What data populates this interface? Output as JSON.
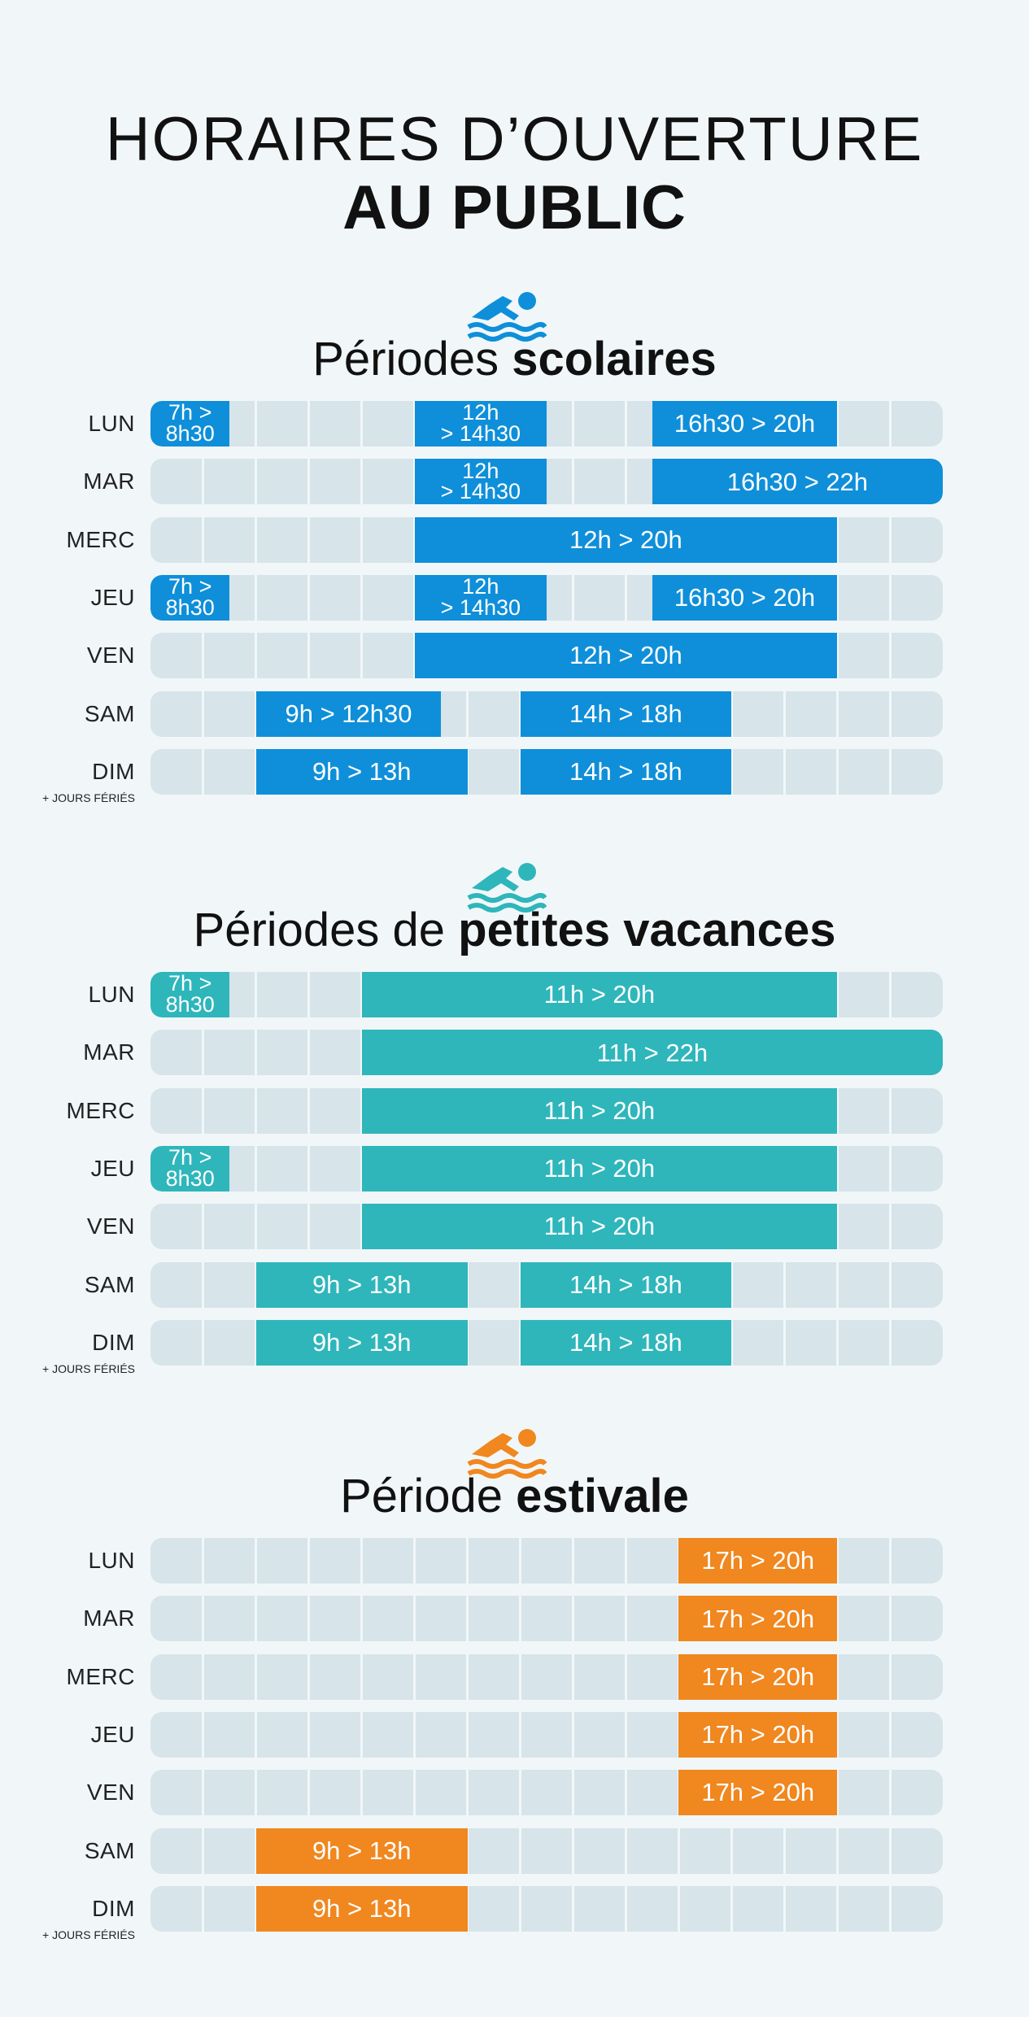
{
  "header": {
    "line1": "HORAIRES D’OUVERTURE",
    "line2": "AU PUBLIC"
  },
  "colors": {
    "scolaires": "#0f8fd9",
    "petites": "#2eb6bb",
    "estivale": "#f0871f"
  },
  "icons": {
    "section": "swimmer-icon"
  },
  "holiday_note": "+ JOURS FÉRIÉS",
  "timeline": {
    "start_hour": 7,
    "end_hour": 22
  },
  "sections": [
    {
      "id": "scolaires",
      "title_prefix": "Périodes ",
      "title_bold": "scolaires",
      "days": [
        {
          "day": "LUN",
          "blocks": [
            {
              "label": "7h > 8h30",
              "start": 7,
              "end": 8.5
            },
            {
              "label": "12h > 14h30",
              "start": 12,
              "end": 14.5
            },
            {
              "label": "16h30 > 20h",
              "start": 16.5,
              "end": 20
            }
          ]
        },
        {
          "day": "MAR",
          "blocks": [
            {
              "label": "12h > 14h30",
              "start": 12,
              "end": 14.5
            },
            {
              "label": "16h30 > 22h",
              "start": 16.5,
              "end": 22
            }
          ]
        },
        {
          "day": "MERC",
          "blocks": [
            {
              "label": "12h > 20h",
              "start": 12,
              "end": 20
            }
          ]
        },
        {
          "day": "JEU",
          "blocks": [
            {
              "label": "7h > 8h30",
              "start": 7,
              "end": 8.5
            },
            {
              "label": "12h > 14h30",
              "start": 12,
              "end": 14.5
            },
            {
              "label": "16h30 > 20h",
              "start": 16.5,
              "end": 20
            }
          ]
        },
        {
          "day": "VEN",
          "blocks": [
            {
              "label": "12h > 20h",
              "start": 12,
              "end": 20
            }
          ]
        },
        {
          "day": "SAM",
          "blocks": [
            {
              "label": "9h > 12h30",
              "start": 9,
              "end": 12.5
            },
            {
              "label": "14h > 18h",
              "start": 14,
              "end": 18
            }
          ]
        },
        {
          "day": "DIM",
          "holiday": true,
          "blocks": [
            {
              "label": "9h > 13h",
              "start": 9,
              "end": 13
            },
            {
              "label": "14h > 18h",
              "start": 14,
              "end": 18
            }
          ]
        }
      ]
    },
    {
      "id": "petites",
      "title_prefix": "Périodes de ",
      "title_bold": "petites vacances",
      "days": [
        {
          "day": "LUN",
          "blocks": [
            {
              "label": "7h > 8h30",
              "start": 7,
              "end": 8.5
            },
            {
              "label": "11h > 20h",
              "start": 11,
              "end": 20
            }
          ]
        },
        {
          "day": "MAR",
          "blocks": [
            {
              "label": "11h > 22h",
              "start": 11,
              "end": 22
            }
          ]
        },
        {
          "day": "MERC",
          "blocks": [
            {
              "label": "11h > 20h",
              "start": 11,
              "end": 20
            }
          ]
        },
        {
          "day": "JEU",
          "blocks": [
            {
              "label": "7h > 8h30",
              "start": 7,
              "end": 8.5
            },
            {
              "label": "11h > 20h",
              "start": 11,
              "end": 20
            }
          ]
        },
        {
          "day": "VEN",
          "blocks": [
            {
              "label": "11h > 20h",
              "start": 11,
              "end": 20
            }
          ]
        },
        {
          "day": "SAM",
          "blocks": [
            {
              "label": "9h > 13h",
              "start": 9,
              "end": 13
            },
            {
              "label": "14h > 18h",
              "start": 14,
              "end": 18
            }
          ]
        },
        {
          "day": "DIM",
          "holiday": true,
          "blocks": [
            {
              "label": "9h > 13h",
              "start": 9,
              "end": 13
            },
            {
              "label": "14h > 18h",
              "start": 14,
              "end": 18
            }
          ]
        }
      ]
    },
    {
      "id": "estivale",
      "title_prefix": "Période ",
      "title_bold": "estivale",
      "days": [
        {
          "day": "LUN",
          "blocks": [
            {
              "label": "17h > 20h",
              "start": 17,
              "end": 20
            }
          ]
        },
        {
          "day": "MAR",
          "blocks": [
            {
              "label": "17h > 20h",
              "start": 17,
              "end": 20
            }
          ]
        },
        {
          "day": "MERC",
          "blocks": [
            {
              "label": "17h > 20h",
              "start": 17,
              "end": 20
            }
          ]
        },
        {
          "day": "JEU",
          "blocks": [
            {
              "label": "17h > 20h",
              "start": 17,
              "end": 20
            }
          ]
        },
        {
          "day": "VEN",
          "blocks": [
            {
              "label": "17h > 20h",
              "start": 17,
              "end": 20
            }
          ]
        },
        {
          "day": "SAM",
          "blocks": [
            {
              "label": "9h > 13h",
              "start": 9,
              "end": 13
            }
          ]
        },
        {
          "day": "DIM",
          "holiday": true,
          "blocks": [
            {
              "label": "9h > 13h",
              "start": 9,
              "end": 13
            }
          ]
        }
      ]
    }
  ]
}
